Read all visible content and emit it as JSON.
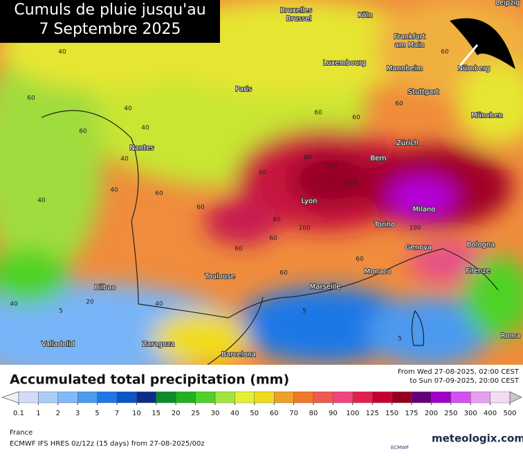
{
  "title": {
    "line1": "Cumuls de pluie jusqu'au",
    "line2": "7 Septembre 2025"
  },
  "cities": [
    "Bruxelles",
    "Brussel",
    "Köln",
    "Leipzig",
    "Frankfurt",
    "am Main",
    "Luxembourg",
    "Mannheim",
    "Nürnberg",
    "Stuttgart",
    "Paris",
    "München",
    "Nantes",
    "Zürich",
    "Bern",
    "Lyon",
    "Milano",
    "Torino",
    "Genova",
    "Bologna",
    "Monaco",
    "Firenze",
    "Marseille",
    "Toulouse",
    "Bilbao",
    "Valladolid",
    "Zaragoza",
    "Barcelona",
    "Roma"
  ],
  "contour_labels": [
    40,
    60,
    40,
    40,
    60,
    40,
    40,
    40,
    60,
    60,
    60,
    80,
    100,
    100,
    80,
    60,
    125,
    100,
    60,
    60,
    60,
    60,
    60,
    60,
    40,
    40,
    20,
    5,
    5,
    60,
    5
  ],
  "legend": {
    "title": "Accumulated total precipitation (mm)",
    "levels": [
      0.1,
      1,
      2,
      3,
      5,
      7,
      10,
      15,
      20,
      25,
      30,
      40,
      50,
      60,
      70,
      80,
      90,
      100,
      125,
      150,
      175,
      200,
      250,
      300,
      400,
      500
    ],
    "colors": [
      "#f0f0fa",
      "#d2dcf8",
      "#aacdf8",
      "#82b9f8",
      "#4b9af0",
      "#1e78e6",
      "#0a55c8",
      "#0a2d8c",
      "#0a8c28",
      "#1eb41e",
      "#50d228",
      "#a0e63c",
      "#e6f032",
      "#f0dc1e",
      "#f0a028",
      "#f07828",
      "#f05a50",
      "#f0467d",
      "#e61e50",
      "#c8002d",
      "#96001e",
      "#640078",
      "#a000c8",
      "#d250f0",
      "#e6a0f0",
      "#f5dcf5",
      "#c8c8c8"
    ]
  },
  "period": {
    "from": "From Wed 27-08-2025, 02:00 CEST",
    "to": "to Sun 07-09-2025, 20:00 CEST"
  },
  "region": "France",
  "model": "ECMWF IFS HRES 0z/12z (15 days) from  27-08-2025/00z",
  "logo_ecmwf": "ECMWF",
  "logo_site": "meteologix.com"
}
